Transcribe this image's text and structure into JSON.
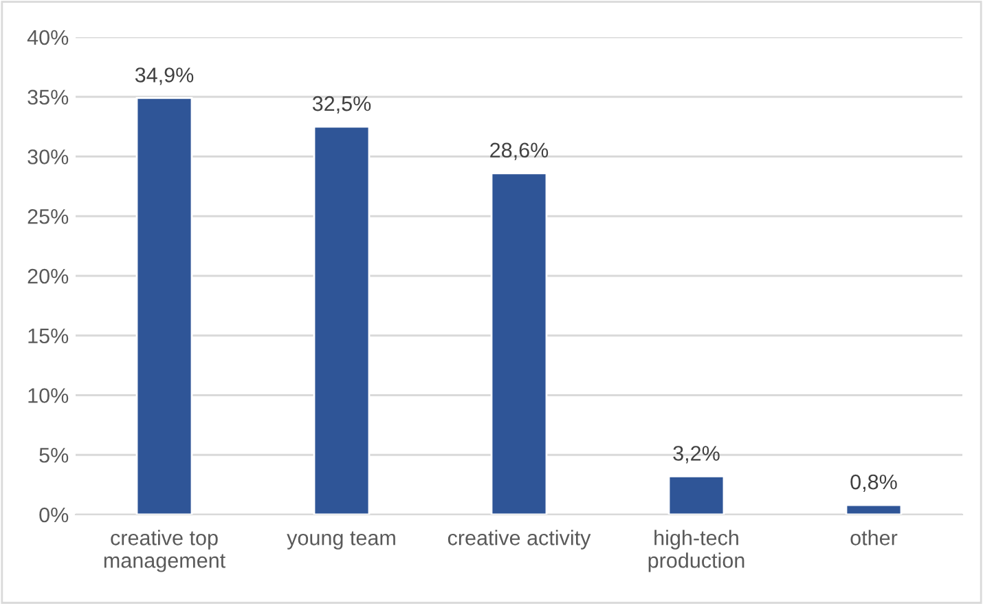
{
  "chart_data": {
    "type": "bar",
    "categories": [
      "creative top\nmanagement",
      "young team",
      "creative activity",
      "high-tech\nproduction",
      "other"
    ],
    "values": [
      34.9,
      32.5,
      28.6,
      3.2,
      0.8
    ],
    "value_labels": [
      "34,9%",
      "32,5%",
      "28,6%",
      "3,2%",
      "0,8%"
    ],
    "color": "#2f5597",
    "ylim": [
      0,
      40
    ],
    "yticks": [
      {
        "value": 0,
        "label": "0%"
      },
      {
        "value": 5,
        "label": "5%"
      },
      {
        "value": 10,
        "label": "10%"
      },
      {
        "value": 15,
        "label": "15%"
      },
      {
        "value": 20,
        "label": "20%"
      },
      {
        "value": 25,
        "label": "25%"
      },
      {
        "value": 30,
        "label": "30%"
      },
      {
        "value": 35,
        "label": "35%"
      },
      {
        "value": 40,
        "label": "40%"
      }
    ],
    "grid": "y"
  }
}
